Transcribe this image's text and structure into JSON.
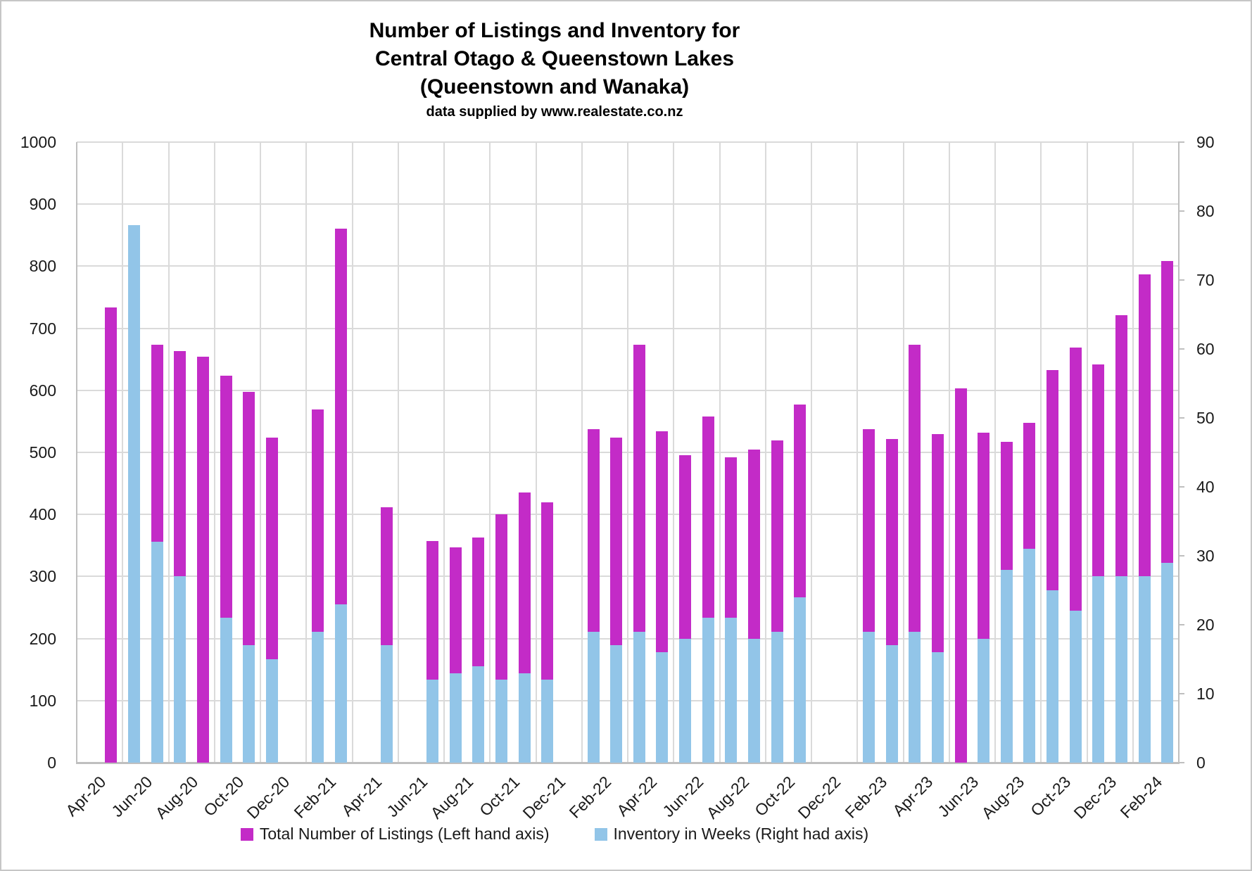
{
  "title": {
    "line1": "Number of Listings and Inventory for",
    "line2": "Central Otago & Queenstown Lakes",
    "line3": "(Queenstown and Wanaka)",
    "subtitle": "data supplied by www.realestate.co.nz"
  },
  "legend": {
    "listings_label": "Total Number of Listings (Left hand axis)",
    "inventory_label": "Inventory in Weeks (Right had axis)"
  },
  "colors": {
    "listings_bar": "#c32bc7",
    "inventory_bar": "#92c5e8",
    "gridline": "#dadada",
    "axis_line": "#bfbfbf",
    "text": "#1a1a1a"
  },
  "chart_data": {
    "type": "bar",
    "bar_style": "overlapped-dual-axis",
    "grid": true,
    "legend_position": "bottom",
    "categories": [
      "Apr-20",
      "May-20",
      "Jun-20",
      "Jul-20",
      "Aug-20",
      "Sep-20",
      "Oct-20",
      "Nov-20",
      "Dec-20",
      "Jan-21",
      "Feb-21",
      "Mar-21",
      "Apr-21",
      "May-21",
      "Jun-21",
      "Jul-21",
      "Aug-21",
      "Sep-21",
      "Oct-21",
      "Nov-21",
      "Dec-21",
      "Jan-22",
      "Feb-22",
      "Mar-22",
      "Apr-22",
      "May-22",
      "Jun-22",
      "Jul-22",
      "Aug-22",
      "Sep-22",
      "Oct-22",
      "Nov-22",
      "Dec-22",
      "Jan-23",
      "Feb-23",
      "Mar-23",
      "Apr-23",
      "May-23",
      "Jun-23",
      "Jul-23",
      "Aug-23",
      "Sep-23",
      "Oct-23",
      "Nov-23",
      "Dec-23",
      "Jan-24",
      "Feb-24",
      "Mar-24"
    ],
    "x_tick_labels": [
      "Apr-20",
      "Jun-20",
      "Aug-20",
      "Oct-20",
      "Dec-20",
      "Feb-21",
      "Apr-21",
      "Jun-21",
      "Aug-21",
      "Oct-21",
      "Dec-21",
      "Feb-22",
      "Apr-22",
      "Jun-22",
      "Aug-22",
      "Oct-22",
      "Dec-22",
      "Feb-23",
      "Apr-23",
      "Jun-23",
      "Aug-23",
      "Oct-23",
      "Dec-23",
      "Feb-24"
    ],
    "series": [
      {
        "name": "Total Number of Listings (Left hand axis)",
        "axis": "left",
        "color": "#c32bc7",
        "values": [
          null,
          734,
          null,
          674,
          663,
          654,
          624,
          597,
          524,
          null,
          569,
          860,
          null,
          412,
          null,
          357,
          347,
          363,
          400,
          435,
          420,
          null,
          537,
          524,
          674,
          534,
          495,
          558,
          492,
          505,
          519,
          577,
          null,
          null,
          537,
          521,
          674,
          530,
          603,
          532,
          517,
          548,
          633,
          669,
          642,
          721,
          787,
          808
        ]
      },
      {
        "name": "Inventory in Weeks (Right had axis)",
        "axis": "right",
        "color": "#92c5e8",
        "values": [
          null,
          null,
          78,
          32,
          27,
          null,
          21,
          17,
          15,
          null,
          19,
          23,
          null,
          17,
          null,
          12,
          13,
          14,
          12,
          13,
          12,
          null,
          19,
          17,
          19,
          16,
          18,
          21,
          21,
          18,
          19,
          24,
          null,
          null,
          19,
          17,
          19,
          16,
          null,
          18,
          28,
          31,
          25,
          22,
          27,
          27,
          27,
          29
        ]
      }
    ],
    "left_axis": {
      "min": 0,
      "max": 1000,
      "step": 100,
      "ticks": [
        "0",
        "100",
        "200",
        "300",
        "400",
        "500",
        "600",
        "700",
        "800",
        "900",
        "1000"
      ]
    },
    "right_axis": {
      "min": 0,
      "max": 90,
      "step": 10,
      "ticks": [
        "0",
        "10",
        "20",
        "30",
        "40",
        "50",
        "60",
        "70",
        "80",
        "90"
      ]
    }
  }
}
